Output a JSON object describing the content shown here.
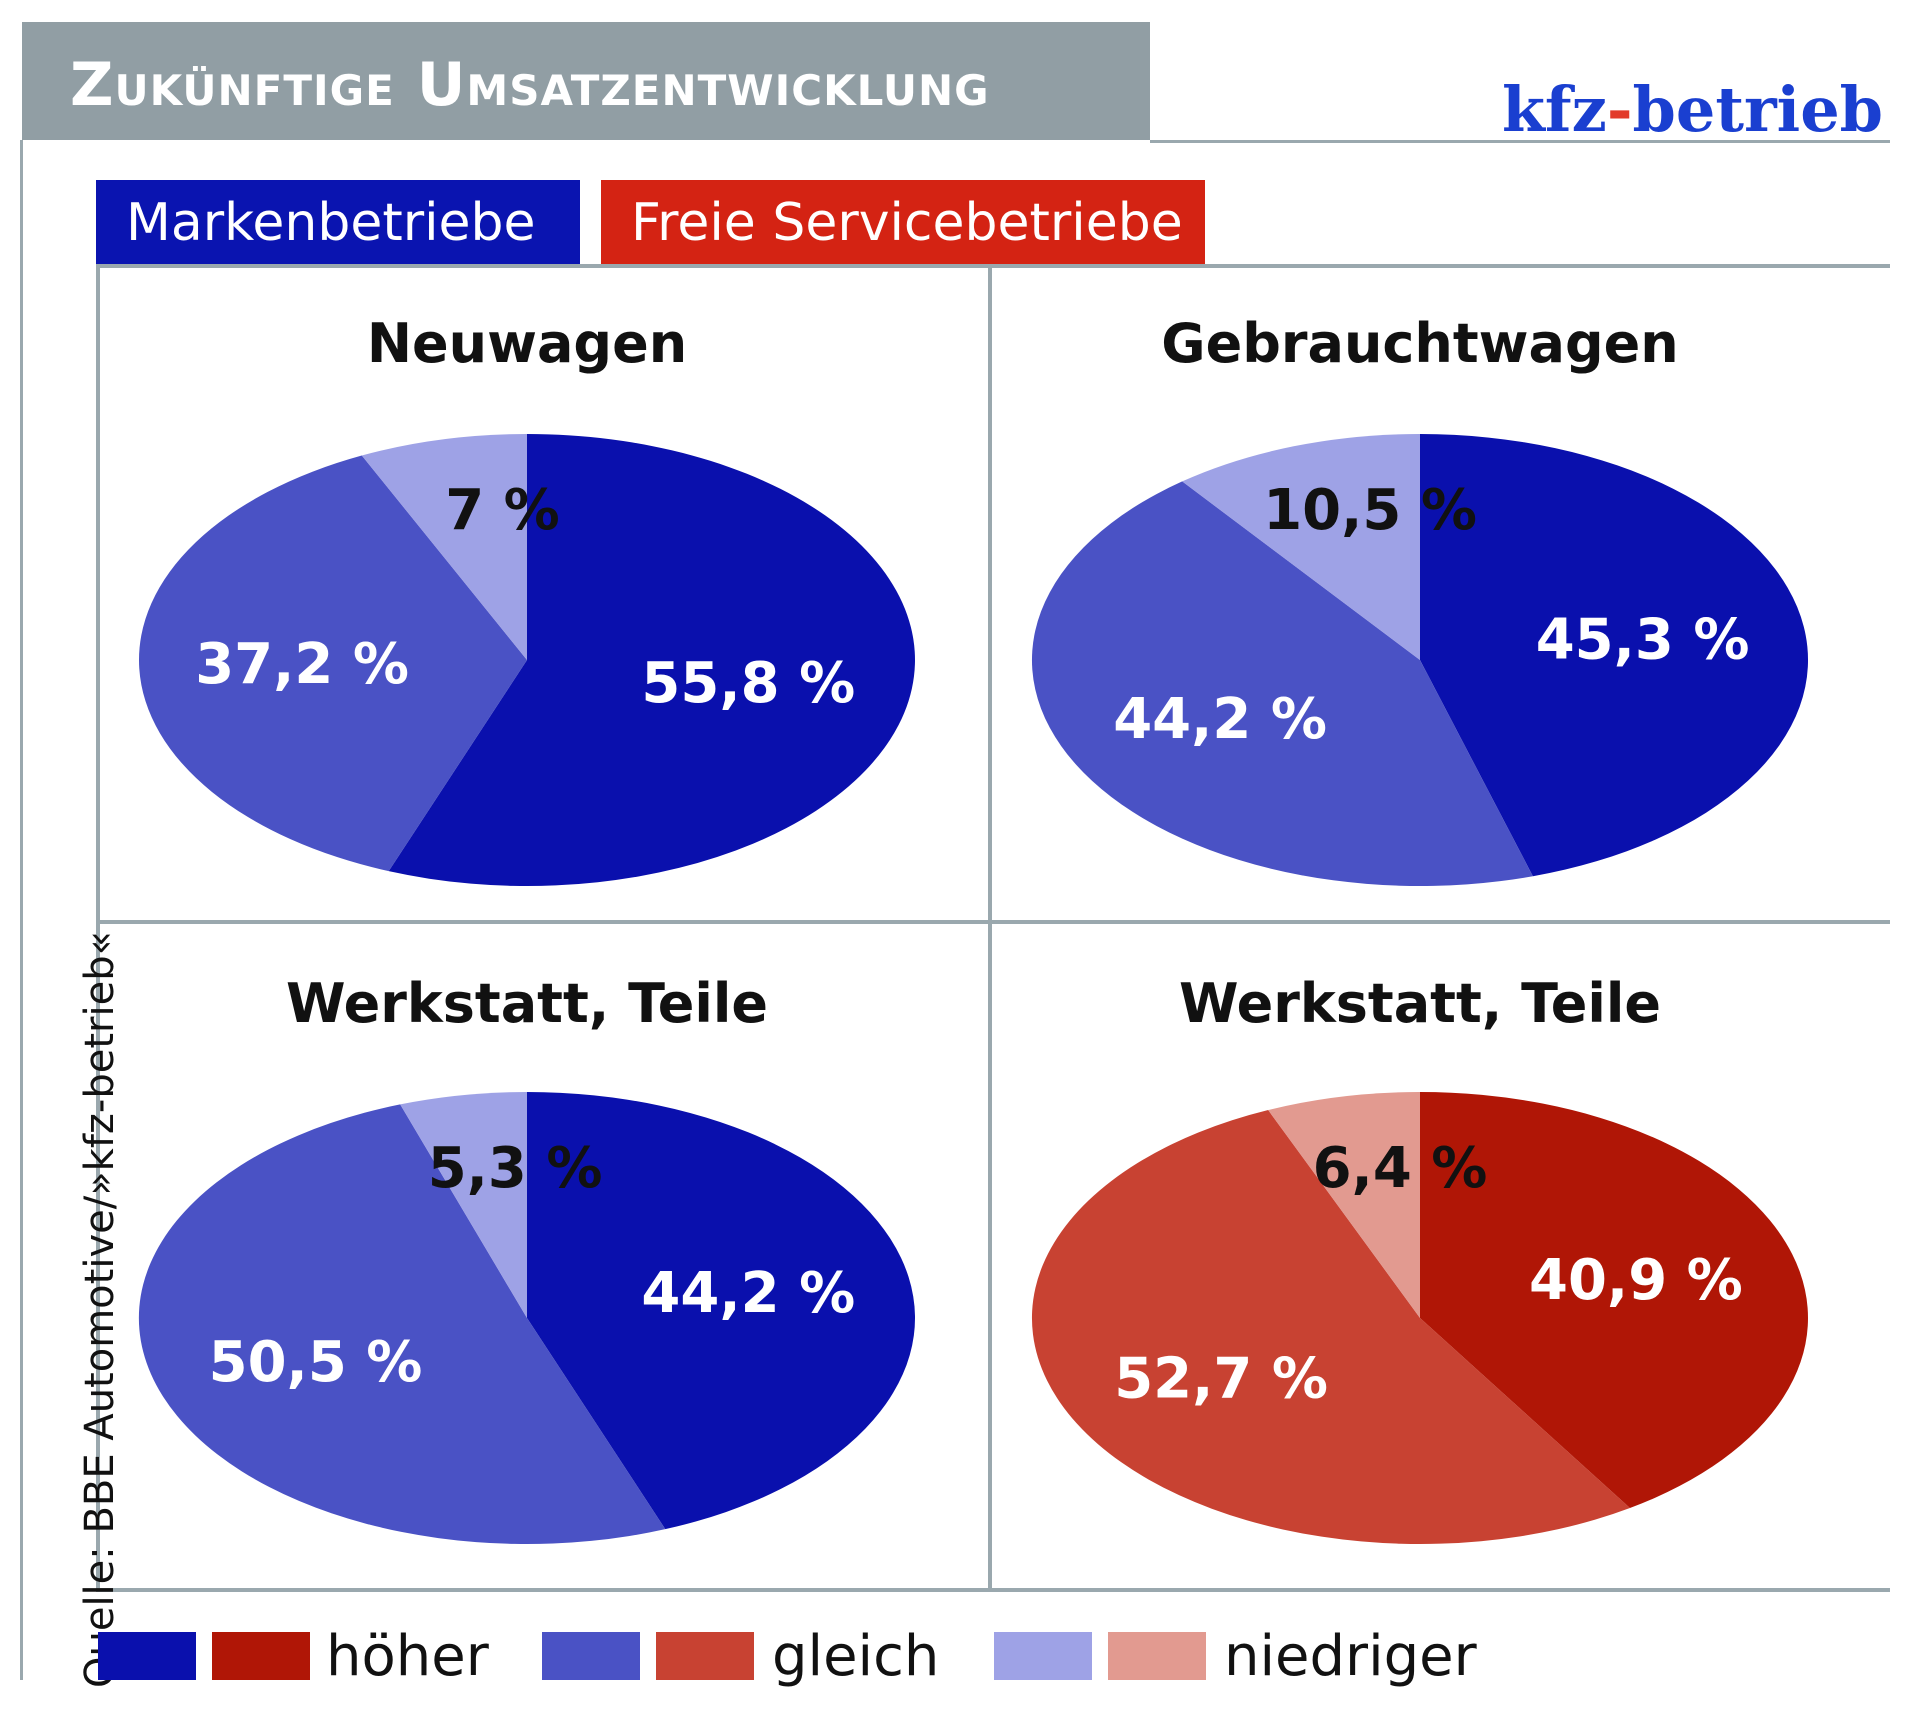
{
  "header": {
    "title": "Zukünftige Umsatzentwicklung",
    "logo_main": "kfz",
    "logo_dash": "-",
    "logo_tail": "betrieb"
  },
  "tabs": {
    "brand_label": "Markenbetriebe",
    "free_label": "Freie Servicebetriebe"
  },
  "source": "Quelle: BBE Automotive/»kfz-betrieb«",
  "legend": {
    "higher": "höher",
    "same": "gleich",
    "lower": "niedriger"
  },
  "colors": {
    "blue_higher": "#0a10ad",
    "blue_same": "#4a52c5",
    "blue_lower": "#9ea2e6",
    "red_higher": "#b01606",
    "red_same": "#c84232",
    "red_lower": "#e29a90",
    "title_bg": "#919ea4",
    "rule": "#9aa8ae"
  },
  "chart_data": [
    {
      "type": "pie",
      "title": "Neuwagen",
      "group": "Markenbetriebe",
      "categories": [
        "höher",
        "gleich",
        "niedriger"
      ],
      "values": [
        55.8,
        37.2,
        7
      ],
      "labels": [
        "55,8 %",
        "37,2 %",
        "7 %"
      ]
    },
    {
      "type": "pie",
      "title": "Gebrauchtwagen",
      "group": "Markenbetriebe",
      "categories": [
        "höher",
        "gleich",
        "niedriger"
      ],
      "values": [
        45.3,
        44.2,
        10.5
      ],
      "labels": [
        "45,3 %",
        "44,2 %",
        "10,5 %"
      ]
    },
    {
      "type": "pie",
      "title": "Werkstatt, Teile",
      "group": "Markenbetriebe",
      "categories": [
        "höher",
        "gleich",
        "niedriger"
      ],
      "values": [
        44.2,
        50.5,
        5.3
      ],
      "labels": [
        "44,2 %",
        "50,5 %",
        "5,3 %"
      ]
    },
    {
      "type": "pie",
      "title": "Werkstatt, Teile",
      "group": "Freie Servicebetriebe",
      "categories": [
        "höher",
        "gleich",
        "niedriger"
      ],
      "values": [
        40.9,
        52.7,
        6.4
      ],
      "labels": [
        "40,9 %",
        "52,7 %",
        "6,4 %"
      ]
    }
  ]
}
